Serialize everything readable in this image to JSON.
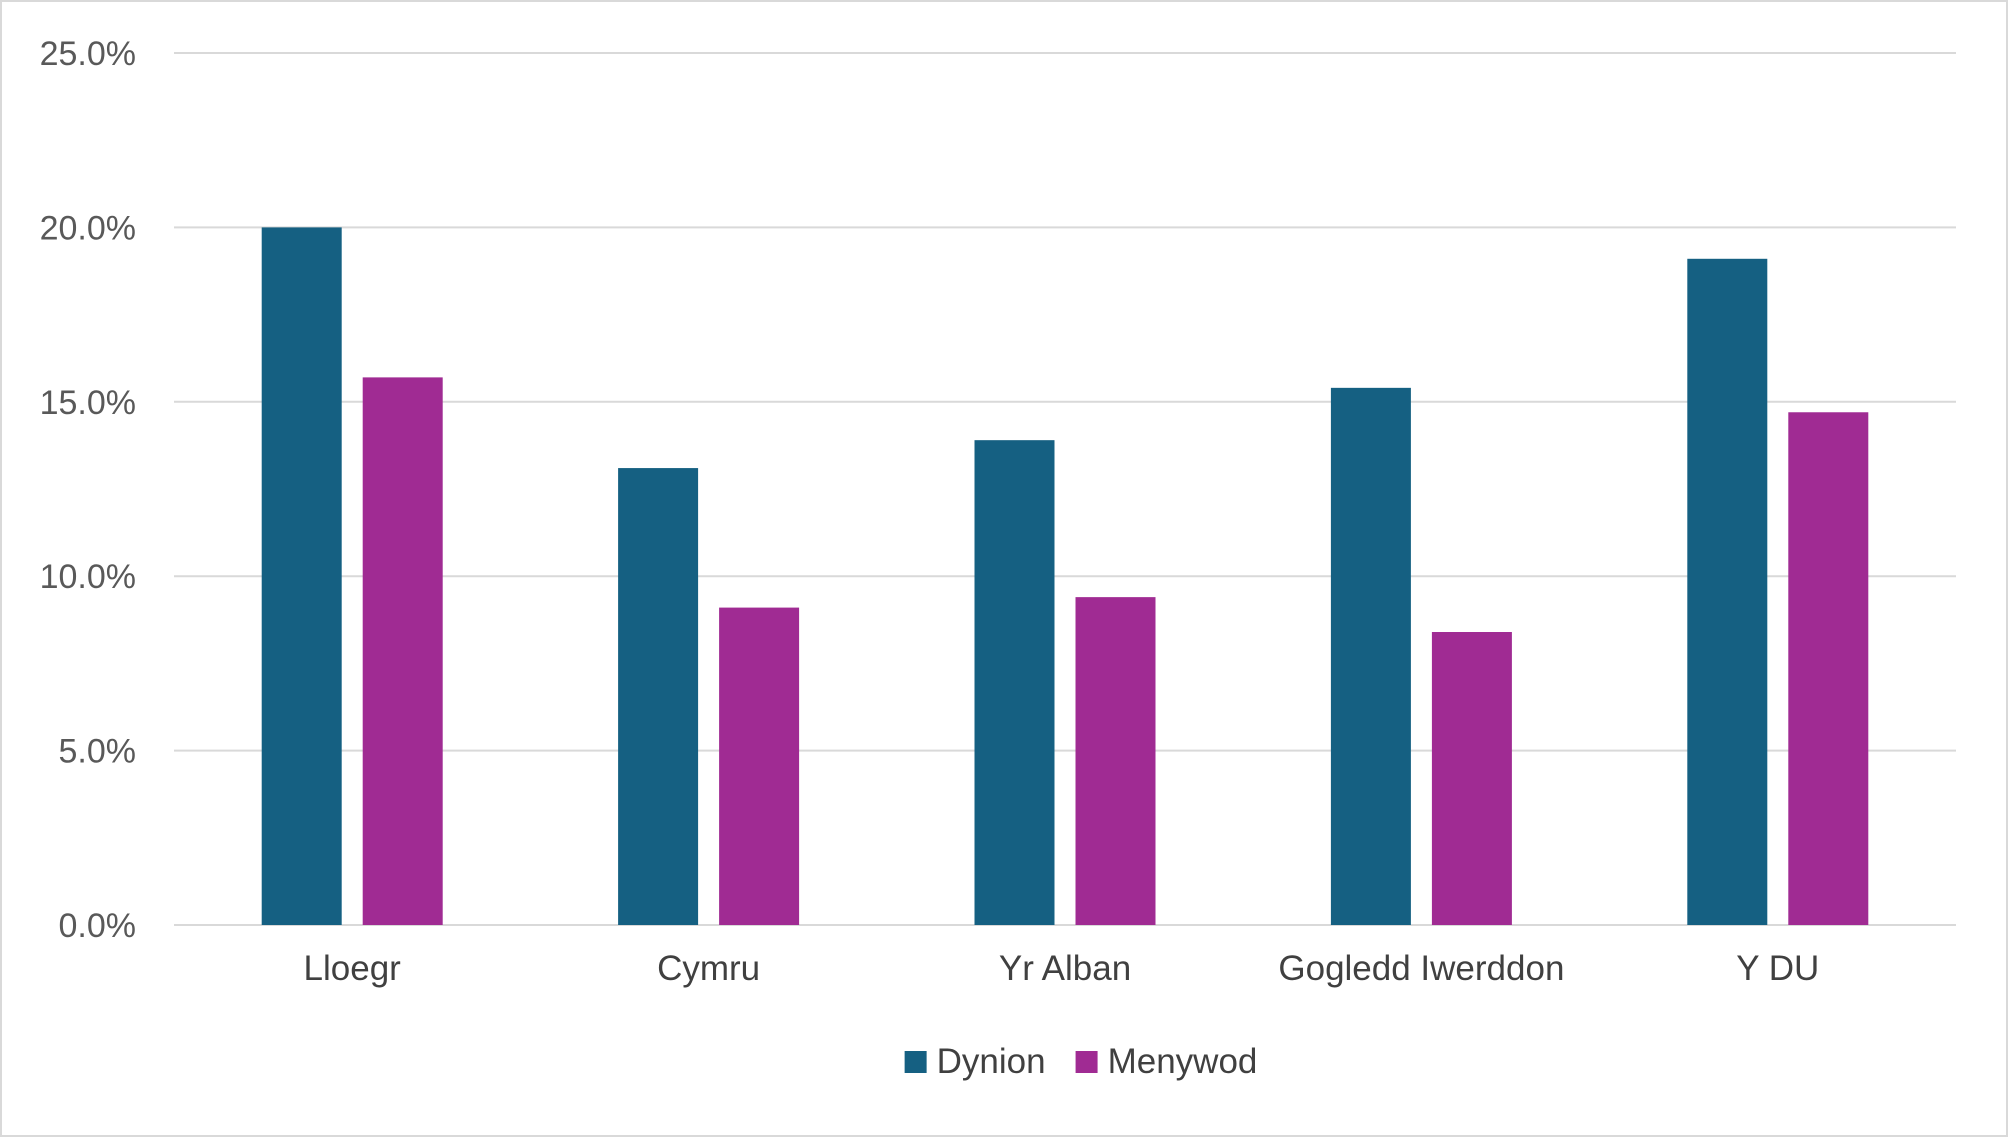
{
  "chart_data": {
    "type": "bar",
    "title": "",
    "xlabel": "",
    "ylabel": "",
    "categories": [
      "Lloegr",
      "Cymru",
      "Yr Alban",
      "Gogledd Iwerddon",
      "Y DU"
    ],
    "series": [
      {
        "name": "Dynion",
        "color": "#156082",
        "values": [
          20.0,
          13.1,
          13.9,
          15.4,
          19.1
        ]
      },
      {
        "name": "Menywod",
        "color": "#A02B93",
        "values": [
          15.7,
          9.1,
          9.4,
          8.4,
          14.7
        ]
      }
    ],
    "ylim": [
      0,
      25
    ],
    "y_ticks": [
      0,
      5,
      10,
      15,
      20,
      25
    ],
    "y_tick_labels": [
      "0.0%",
      "5.0%",
      "10.0%",
      "15.0%",
      "20.0%",
      "25.0%"
    ],
    "grid": true,
    "legend_position": "bottom"
  }
}
